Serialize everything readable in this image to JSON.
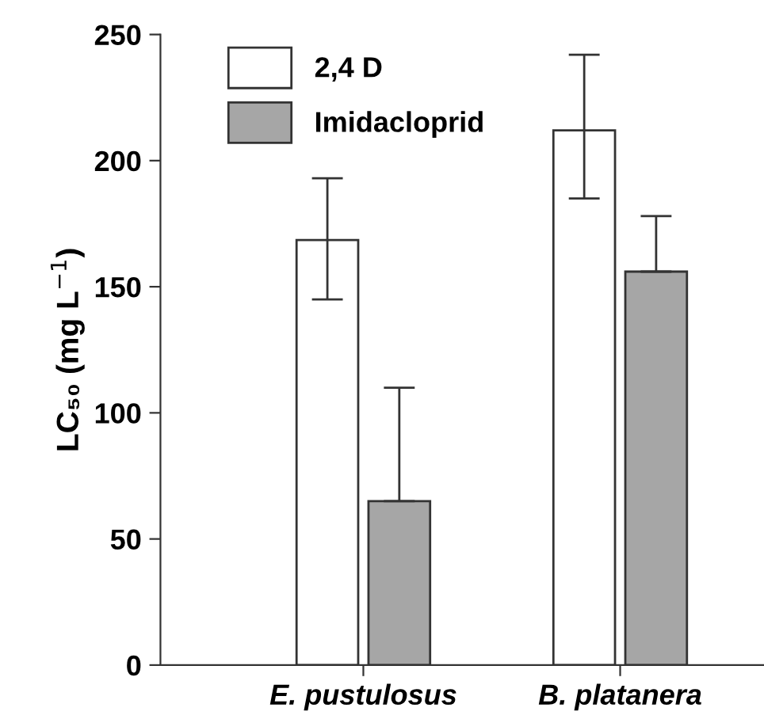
{
  "chart_data": {
    "type": "bar",
    "ylabel": "LC₅₀ (mg L$^{−1}$)",
    "categories": [
      "E. pustulosus",
      "B. platanera"
    ],
    "series": [
      {
        "name": "2,4 D",
        "color": "#ffffff",
        "values": [
          168.5,
          212
        ],
        "errors": [
          [
            145,
            193
          ],
          [
            185,
            242
          ]
        ]
      },
      {
        "name": "Imidacloprid",
        "color": "#a6a6a6",
        "values": [
          65,
          156
        ],
        "errors": [
          [
            65,
            110
          ],
          [
            156,
            178
          ]
        ]
      }
    ],
    "ylim": [
      0,
      250
    ],
    "yticks": [
      0,
      50,
      100,
      150,
      200,
      250
    ],
    "grid": false,
    "legend": "top left"
  }
}
